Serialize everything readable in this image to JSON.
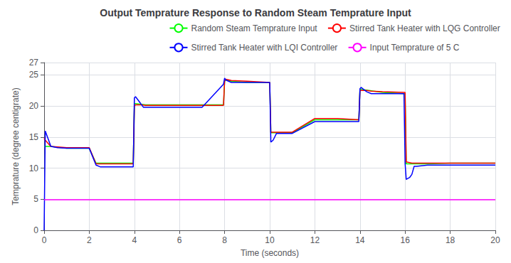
{
  "chart_data": {
    "type": "line",
    "title": "Output Temprature Response to Random Steam Temprature Input",
    "x_label": "Time (seconds)",
    "y_label": "Temprature (degree centigrate)",
    "xlim": [
      0,
      20
    ],
    "ylim": [
      0,
      27
    ],
    "xticks": [
      0,
      2,
      4,
      6,
      8,
      10,
      12,
      14,
      16,
      18,
      20
    ],
    "yticks": [
      0,
      5,
      10,
      15,
      20,
      25
    ],
    "grid": true,
    "legend": "upper right",
    "series": [
      {
        "name": "Random Steam Temprature Input",
        "color": "#00FF00",
        "x": [
          0,
          0.3,
          1.0,
          2.0,
          2.3,
          2.5,
          3.95,
          4.0,
          4.05,
          4.5,
          5.0,
          6.0,
          7.0,
          7.95,
          8.0,
          8.05,
          8.3,
          9.0,
          10.0,
          10.05,
          10.1,
          10.5,
          11.0,
          12.0,
          13.0,
          13.95,
          14.0,
          14.05,
          15.0,
          15.95,
          16.0,
          16.05,
          16.5,
          17.0,
          18.0,
          19.0,
          20.0
        ],
        "values": [
          13.5,
          13.5,
          13.2,
          13.2,
          10.8,
          10.8,
          10.8,
          20.4,
          20.4,
          20.2,
          20.2,
          20.2,
          20.2,
          20.2,
          24.0,
          24.2,
          24.0,
          23.8,
          23.8,
          15.7,
          15.7,
          15.7,
          15.7,
          17.8,
          17.8,
          17.8,
          22.7,
          22.7,
          22.2,
          22.0,
          22.0,
          10.7,
          10.7,
          10.7,
          10.8,
          10.8,
          10.8
        ]
      },
      {
        "name": "Stirred Tank Heater with LQG Controller",
        "color": "#FF0000",
        "x": [
          0,
          0.05,
          0.3,
          1.0,
          2.0,
          2.3,
          2.5,
          3.95,
          4.0,
          4.05,
          4.3,
          4.5,
          5.0,
          6.0,
          7.0,
          7.95,
          8.0,
          8.05,
          8.3,
          9.0,
          10.0,
          10.05,
          10.3,
          10.5,
          11.0,
          12.0,
          12.5,
          13.0,
          13.95,
          14.0,
          14.05,
          14.3,
          14.5,
          15.0,
          15.95,
          16.0,
          16.05,
          16.3,
          16.5,
          17.0,
          18.0,
          19.0,
          20.0
        ],
        "values": [
          14.8,
          14.5,
          13.5,
          13.3,
          13.3,
          10.7,
          10.7,
          10.7,
          20.0,
          20.2,
          20.2,
          20.1,
          20.1,
          20.1,
          20.1,
          20.1,
          24.0,
          24.3,
          24.1,
          24.0,
          23.8,
          15.8,
          15.8,
          15.8,
          15.8,
          18.0,
          18.0,
          18.0,
          17.8,
          22.5,
          22.5,
          22.5,
          22.4,
          22.3,
          22.2,
          22.2,
          11.0,
          10.8,
          10.8,
          10.8,
          10.8,
          10.8,
          10.8
        ]
      },
      {
        "name": "Stirred Tank Heater with LQI Controller",
        "color": "#0000FF",
        "x": [
          0,
          0.05,
          0.3,
          0.6,
          1.0,
          2.0,
          2.3,
          2.5,
          3.0,
          3.95,
          4.0,
          4.05,
          4.2,
          4.4,
          4.5,
          5.0,
          6.0,
          7.0,
          7.95,
          8.0,
          8.05,
          8.3,
          9.0,
          10.0,
          10.05,
          10.15,
          10.3,
          10.5,
          11.0,
          12.0,
          13.0,
          13.95,
          14.0,
          14.05,
          14.3,
          14.5,
          15.0,
          15.95,
          16.0,
          16.05,
          16.2,
          16.3,
          16.4,
          16.5,
          17.0,
          18.0,
          19.0,
          20.0
        ],
        "values": [
          0.0,
          16.0,
          13.5,
          13.3,
          13.2,
          13.2,
          10.5,
          10.2,
          10.2,
          10.2,
          21.3,
          21.5,
          20.8,
          19.8,
          19.8,
          19.8,
          19.8,
          19.8,
          23.5,
          24.5,
          24.2,
          23.8,
          23.8,
          23.8,
          14.2,
          14.5,
          15.6,
          15.6,
          15.6,
          17.5,
          17.5,
          17.5,
          22.8,
          23.0,
          22.3,
          22.0,
          22.0,
          22.0,
          10.8,
          8.2,
          8.5,
          9.0,
          10.3,
          10.3,
          10.5,
          10.5,
          10.5,
          10.5
        ]
      },
      {
        "name": "Input Temprature of 5 C",
        "color": "#FF00FF",
        "type": "hline",
        "values": [
          5.0
        ]
      }
    ]
  }
}
